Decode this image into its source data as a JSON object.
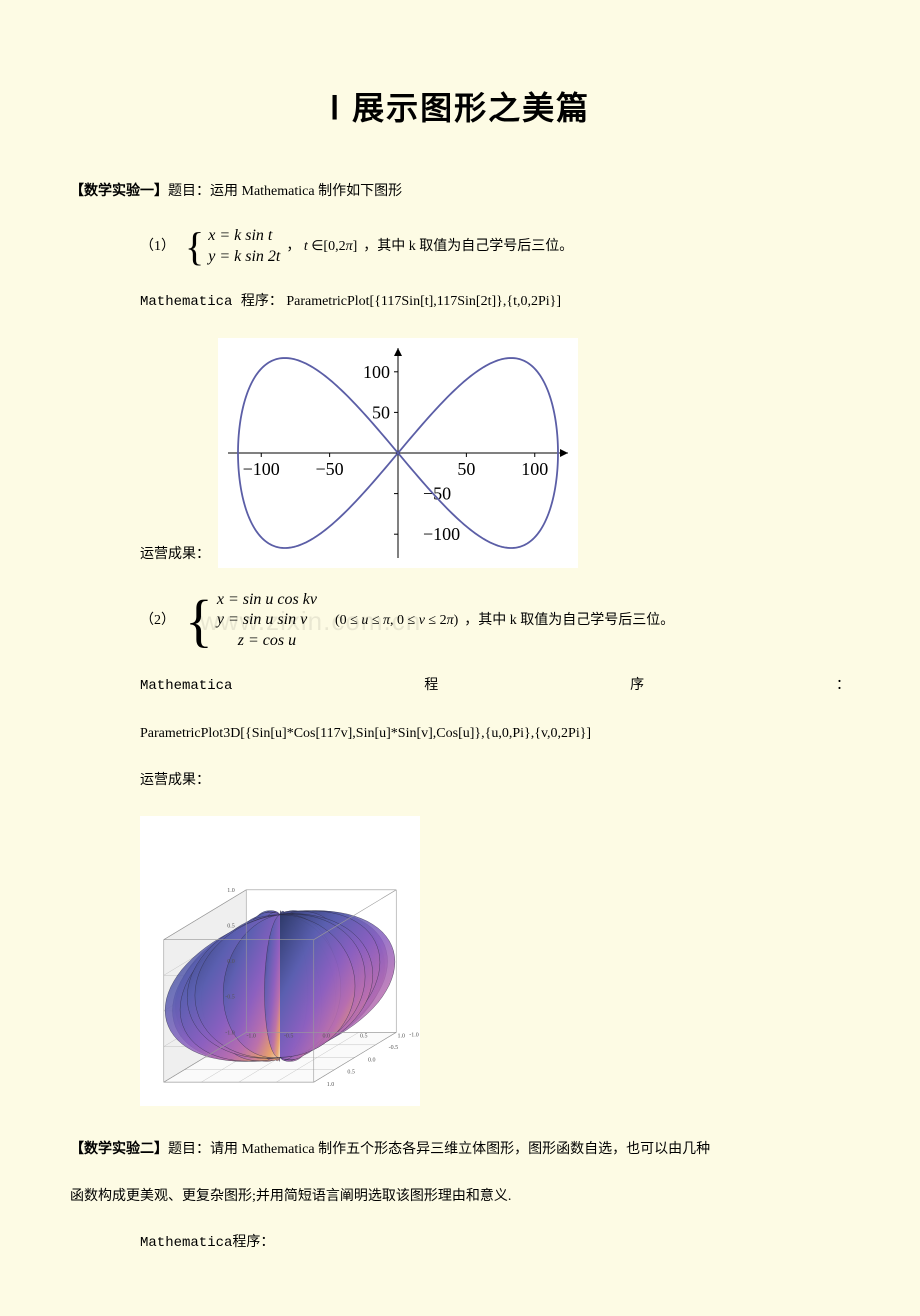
{
  "title": "Ⅰ  展示图形之美篇",
  "exp1": {
    "label": "【数学实验一】",
    "prompt": "题目：运用 Mathematica 制作如下图形",
    "item1": {
      "num": "（1）",
      "eq1": "x = k sin t",
      "eq2": "y = k sin 2t",
      "domain": "，  t ∈[0,2π]",
      "note": "，其中 k 取值为自己学号后三位。",
      "mma_label": "Mathematica 程序：",
      "code": "ParametricPlot[{117Sin[t],117Sin[2t]},{t,0,2Pi}]",
      "result_label": "运营成果：",
      "plot": {
        "xlim": [
          -125,
          125
        ],
        "ylim": [
          -120,
          120
        ],
        "xticks": [
          -100,
          -50,
          50,
          100
        ],
        "yticks": [
          -100,
          -50,
          50,
          100
        ],
        "curve_color": "#5b5ea6",
        "axis_color": "#000000",
        "line_width": 1.8,
        "amp_x": 117,
        "amp_y": 117,
        "tick_fontsize": 18
      }
    },
    "item2": {
      "num": "（2）",
      "eq1": "x = sin u cos kv",
      "eq2": "y = sin u sin v",
      "eq3": "z = cos u",
      "domain": "(0 ≤ u ≤ π, 0 ≤ v ≤ 2π)",
      "note": "，其中 k 取值为自己学号后三位。",
      "mma_label": "Mathematica",
      "mma_mid": "程",
      "mma_mid2": "序",
      "mma_tail": "：",
      "code": "ParametricPlot3D[{Sin[u]*Cos[117v],Sin[u]*Sin[v],Cos[u]},{u,0,Pi},{v,0,2Pi}]",
      "result_label": "运营成果：",
      "plot3d": {
        "axis_range": [
          -1.0,
          1.0
        ],
        "axis_ticks": [
          -1.0,
          -0.5,
          0.0,
          0.5,
          1.0
        ],
        "grid_color": "#b8b8b8",
        "box_color": "#9a9a9a",
        "surface_stops": [
          {
            "o": "0%",
            "c": "#2e3a6a"
          },
          {
            "o": "30%",
            "c": "#5a5fb0"
          },
          {
            "o": "55%",
            "c": "#8a5fc0"
          },
          {
            "o": "75%",
            "c": "#b96eaf"
          },
          {
            "o": "90%",
            "c": "#e7a06a"
          },
          {
            "o": "100%",
            "c": "#f0d9c0"
          }
        ],
        "outline_color": "#2a2a40",
        "tick_fontsize": 6
      }
    }
  },
  "exp2": {
    "label": "【数学实验二】",
    "prompt": "题目：请用 Mathematica 制作五个形态各异三维立体图形，图形函数自选，也可以由几种",
    "prompt2": "函数构成更美观、更复杂图形;并用简短语言阐明选取该图形理由和意义.",
    "mma_label": "Mathematica程序："
  },
  "watermark": "www.zixin.com.cn"
}
